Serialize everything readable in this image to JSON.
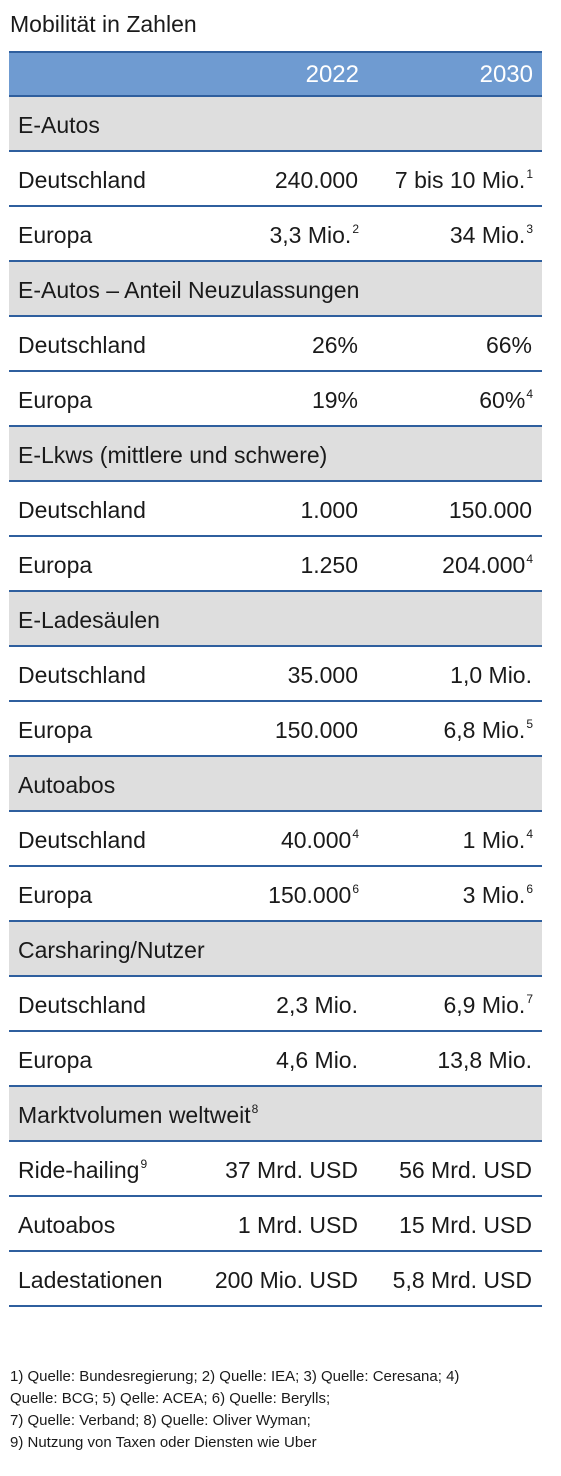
{
  "title": "Mobilität in Zahlen",
  "header": {
    "col1": "2022",
    "col2": "2030"
  },
  "sections": [
    {
      "label": "E-Autos",
      "label_sup": "",
      "rows": [
        {
          "label": "Deutschland",
          "label_sup": "",
          "v1": "240.000",
          "v1_sup": "",
          "v2": "7 bis 10 Mio.",
          "v2_sup": "1"
        },
        {
          "label": "Europa",
          "label_sup": "",
          "v1": "3,3 Mio.",
          "v1_sup": "2",
          "v2": "34 Mio.",
          "v2_sup": "3"
        }
      ]
    },
    {
      "label": "E-Autos – Anteil Neuzulassungen",
      "label_sup": "",
      "rows": [
        {
          "label": "Deutschland",
          "label_sup": "",
          "v1": "26%",
          "v1_sup": "",
          "v2": "66%",
          "v2_sup": ""
        },
        {
          "label": "Europa",
          "label_sup": "",
          "v1": "19%",
          "v1_sup": "",
          "v2": "60%",
          "v2_sup": "4"
        }
      ]
    },
    {
      "label": "E-Lkws (mittlere und schwere)",
      "label_sup": "",
      "rows": [
        {
          "label": "Deutschland",
          "label_sup": "",
          "v1": "1.000",
          "v1_sup": "",
          "v2": "150.000",
          "v2_sup": ""
        },
        {
          "label": "Europa",
          "label_sup": "",
          "v1": "1.250",
          "v1_sup": "",
          "v2": "204.000",
          "v2_sup": "4"
        }
      ]
    },
    {
      "label": "E-Ladesäulen",
      "label_sup": "",
      "rows": [
        {
          "label": "Deutschland",
          "label_sup": "",
          "v1": "35.000",
          "v1_sup": "",
          "v2": "1,0 Mio.",
          "v2_sup": ""
        },
        {
          "label": "Europa",
          "label_sup": "",
          "v1": "150.000",
          "v1_sup": "",
          "v2": "6,8 Mio.",
          "v2_sup": "5"
        }
      ]
    },
    {
      "label": "Autoabos",
      "label_sup": "",
      "rows": [
        {
          "label": "Deutschland",
          "label_sup": "",
          "v1": "40.000",
          "v1_sup": "4",
          "v2": "1 Mio.",
          "v2_sup": "4"
        },
        {
          "label": "Europa",
          "label_sup": "",
          "v1": "150.000",
          "v1_sup": "6",
          "v2": "3 Mio.",
          "v2_sup": "6"
        }
      ]
    },
    {
      "label": "Carsharing/Nutzer",
      "label_sup": "",
      "rows": [
        {
          "label": "Deutschland",
          "label_sup": "",
          "v1": "2,3 Mio.",
          "v1_sup": "",
          "v2": "6,9 Mio.",
          "v2_sup": "7"
        },
        {
          "label": "Europa",
          "label_sup": "",
          "v1": "4,6 Mio.",
          "v1_sup": "",
          "v2": "13,8 Mio.",
          "v2_sup": ""
        }
      ]
    },
    {
      "label": "Marktvolumen weltweit",
      "label_sup": "8",
      "rows": [
        {
          "label": "Ride-hailing",
          "label_sup": "9",
          "v1": "37 Mrd. USD",
          "v1_sup": "",
          "v2": "56 Mrd. USD",
          "v2_sup": ""
        },
        {
          "label": "Autoabos",
          "label_sup": "",
          "v1": "1 Mrd. USD",
          "v1_sup": "",
          "v2": "15 Mrd. USD",
          "v2_sup": ""
        },
        {
          "label": "Ladestationen",
          "label_sup": "",
          "v1": "200 Mio. USD",
          "v1_sup": "",
          "v2": "5,8 Mrd. USD",
          "v2_sup": ""
        }
      ]
    }
  ],
  "footnotes": [
    "1) Quelle: Bundesregierung; 2) Quelle: IEA; 3) Quelle: Ceresana; 4)",
    "Quelle: BCG; 5) Qelle: ACEA; 6) Quelle: Berylls;",
    "7) Quelle: Verband; 8) Quelle: Oliver Wyman;",
    "9) Nutzung von Taxen oder Diensten wie Uber"
  ]
}
